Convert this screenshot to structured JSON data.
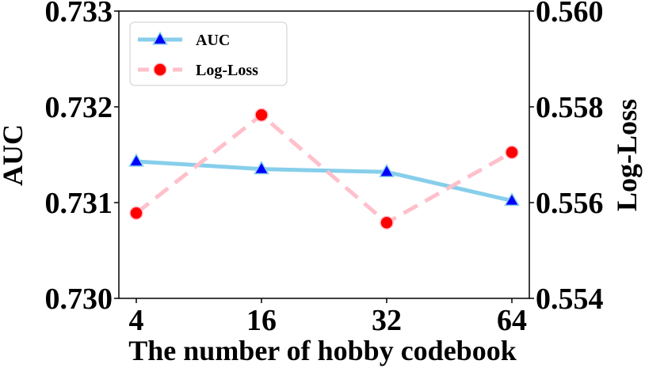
{
  "chart_data": {
    "type": "line",
    "categories": [
      "4",
      "16",
      "32",
      "64"
    ],
    "xlabel": "The number of hobby codebook",
    "ylabel_left": "AUC",
    "ylabel_right": "Log-Loss",
    "ylim_left": [
      0.73,
      0.733
    ],
    "ylim_right": [
      0.554,
      0.56
    ],
    "yticks_left": [
      "0.730",
      "0.731",
      "0.732",
      "0.733"
    ],
    "yticks_right": [
      "0.554",
      "0.556",
      "0.558",
      "0.560"
    ],
    "yticks_left_values": [
      0.73,
      0.731,
      0.732,
      0.733
    ],
    "yticks_right_values": [
      0.554,
      0.556,
      0.558,
      0.56
    ],
    "grid": false,
    "legend_position": "top-left",
    "series": [
      {
        "name": "AUC",
        "axis": "left",
        "values": [
          0.73143,
          0.73135,
          0.73132,
          0.73102
        ],
        "line_color": "#87CEEB",
        "marker_color": "#0000FF",
        "marker": "triangle",
        "linestyle": "solid"
      },
      {
        "name": "Log-Loss",
        "axis": "right",
        "values": [
          0.55578,
          0.55783,
          0.55558,
          0.55705
        ],
        "line_color": "#FFC0CB",
        "marker_color": "#FF0000",
        "marker": "circle",
        "linestyle": "dashed"
      }
    ]
  }
}
